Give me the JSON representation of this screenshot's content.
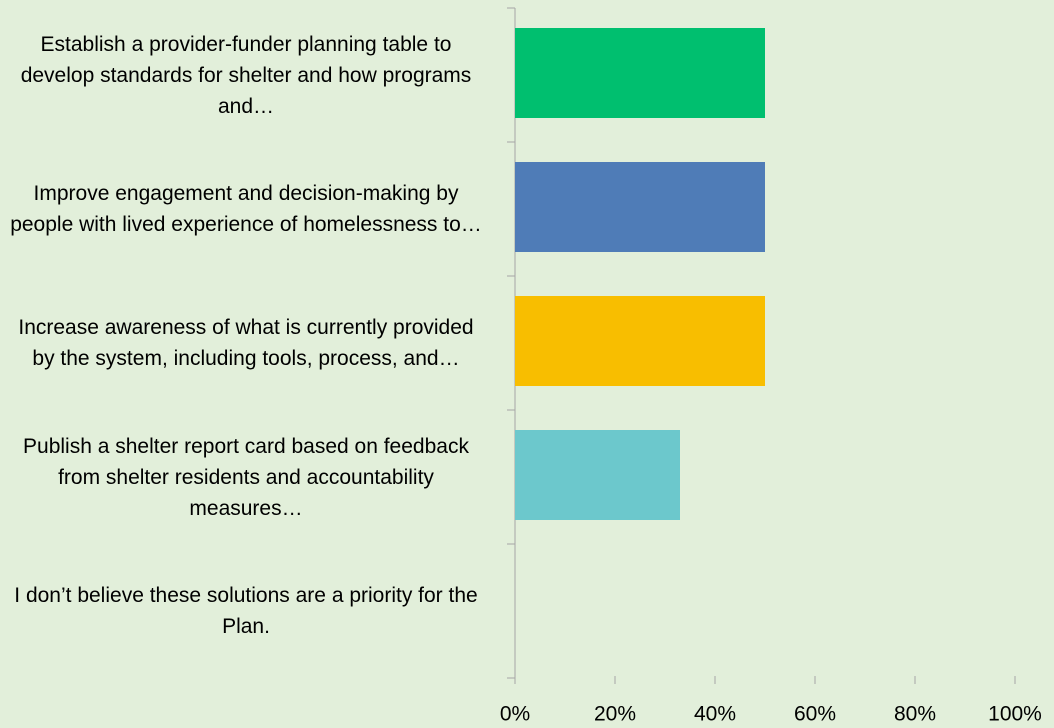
{
  "chart_data": {
    "type": "bar",
    "orientation": "horizontal",
    "categories": [
      "Establish a provider-funder planning table to develop standards for shelter and how programs and…",
      "Improve engagement and decision-making by people with lived experience of homelessness to…",
      "Increase awareness of what is currently provided by the system, including tools, process, and…",
      "Publish a shelter report card based on feedback from shelter residents and accountability measures…",
      "I don’t believe these solutions are a priority for the Plan."
    ],
    "values": [
      50,
      50,
      50,
      33,
      0
    ],
    "colors": [
      "#00bf6f",
      "#4f7cb7",
      "#f8be00",
      "#6cc8cc",
      "#a5a5a5"
    ],
    "xlim": [
      0,
      100
    ],
    "xticks": [
      {
        "value": 0,
        "label": "0%"
      },
      {
        "value": 20,
        "label": "20%"
      },
      {
        "value": 40,
        "label": "40%"
      },
      {
        "value": 60,
        "label": "60%"
      },
      {
        "value": 80,
        "label": "80%"
      },
      {
        "value": 100,
        "label": "100%"
      }
    ],
    "grid": false
  }
}
